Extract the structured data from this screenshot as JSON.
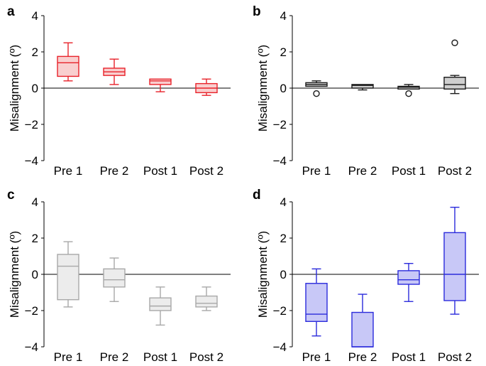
{
  "chart_data": [
    {
      "type": "box",
      "panel": "a",
      "ylabel": "Misalignment (º)",
      "ylim": [
        -4,
        4
      ],
      "yticks": [
        4,
        2,
        0,
        -2,
        -4
      ],
      "ytick_labels": [
        "4",
        "2",
        "0",
        "−2",
        "−4"
      ],
      "categories": [
        "Pre 1",
        "Pre 2",
        "Post 1",
        "Post 2"
      ],
      "color": "#e8222a",
      "fill": "#f9cfcf",
      "boxes": [
        {
          "category": "Pre 1",
          "whisker_low": 0.4,
          "q1": 0.65,
          "median": 1.4,
          "q3": 1.75,
          "whisker_high": 2.5,
          "outliers": []
        },
        {
          "category": "Pre 2",
          "whisker_low": 0.2,
          "q1": 0.7,
          "median": 0.9,
          "q3": 1.1,
          "whisker_high": 1.6,
          "outliers": []
        },
        {
          "category": "Post 1",
          "whisker_low": -0.2,
          "q1": 0.2,
          "median": 0.4,
          "q3": 0.5,
          "whisker_high": 0.5,
          "outliers": []
        },
        {
          "category": "Post 2",
          "whisker_low": -0.4,
          "q1": -0.25,
          "median": 0.0,
          "q3": 0.25,
          "whisker_high": 0.5,
          "outliers": []
        }
      ]
    },
    {
      "type": "box",
      "panel": "b",
      "ylabel": "Misalignment (º)",
      "ylim": [
        -4,
        4
      ],
      "yticks": [
        4,
        2,
        0,
        -2,
        -4
      ],
      "ytick_labels": [
        "4",
        "2",
        "0",
        "−2",
        "−4"
      ],
      "categories": [
        "Pre 1",
        "Pre 2",
        "Post 1",
        "Post 2"
      ],
      "color": "#1a1a1a",
      "fill": "#cfcfcf",
      "boxes": [
        {
          "category": "Pre 1",
          "whisker_low": 0.1,
          "q1": 0.1,
          "median": 0.2,
          "q3": 0.3,
          "whisker_high": 0.4,
          "outliers": [
            -0.3
          ]
        },
        {
          "category": "Pre 2",
          "whisker_low": -0.1,
          "q1": 0.0,
          "median": 0.15,
          "q3": 0.2,
          "whisker_high": 0.2,
          "outliers": []
        },
        {
          "category": "Post 1",
          "whisker_low": -0.05,
          "q1": -0.05,
          "median": 0.05,
          "q3": 0.1,
          "whisker_high": 0.2,
          "outliers": [
            -0.3
          ]
        },
        {
          "category": "Post 2",
          "whisker_low": -0.3,
          "q1": -0.05,
          "median": 0.2,
          "q3": 0.6,
          "whisker_high": 0.7,
          "outliers": [
            2.5
          ]
        }
      ]
    },
    {
      "type": "box",
      "panel": "c",
      "ylabel": "Misalignment (º)",
      "ylim": [
        -4,
        4
      ],
      "yticks": [
        4,
        2,
        0,
        -2,
        -4
      ],
      "ytick_labels": [
        "4",
        "2",
        "0",
        "−2",
        "−4"
      ],
      "categories": [
        "Pre 1",
        "Pre 2",
        "Post 1",
        "Post 2"
      ],
      "color": "#a8a8a8",
      "fill": "#ececec",
      "boxes": [
        {
          "category": "Pre 1",
          "whisker_low": -1.8,
          "q1": -1.4,
          "median": 0.45,
          "q3": 1.1,
          "whisker_high": 1.8,
          "outliers": []
        },
        {
          "category": "Pre 2",
          "whisker_low": -1.5,
          "q1": -0.7,
          "median": -0.3,
          "q3": 0.3,
          "whisker_high": 0.9,
          "outliers": []
        },
        {
          "category": "Post 1",
          "whisker_low": -2.8,
          "q1": -2.0,
          "median": -1.75,
          "q3": -1.3,
          "whisker_high": -0.7,
          "outliers": []
        },
        {
          "category": "Post 2",
          "whisker_low": -2.0,
          "q1": -1.8,
          "median": -1.6,
          "q3": -1.2,
          "whisker_high": -0.7,
          "outliers": []
        }
      ]
    },
    {
      "type": "box",
      "panel": "d",
      "ylabel": "Misalignment (º)",
      "ylim": [
        -4,
        4
      ],
      "yticks": [
        4,
        2,
        0,
        -2,
        -4
      ],
      "ytick_labels": [
        "4",
        "2",
        "0",
        "−2",
        "−4"
      ],
      "categories": [
        "Pre 1",
        "Pre 2",
        "Post 1",
        "Post 2"
      ],
      "color": "#2b2bdc",
      "fill": "#c8c8f7",
      "boxes": [
        {
          "category": "Pre 1",
          "whisker_low": -3.4,
          "q1": -2.6,
          "median": -2.2,
          "q3": -0.5,
          "whisker_high": 0.3,
          "outliers": []
        },
        {
          "category": "Pre 2",
          "whisker_low": -4.0,
          "q1": -4.0,
          "median": -4.0,
          "q3": -2.1,
          "whisker_high": -1.1,
          "outliers": []
        },
        {
          "category": "Post 1",
          "whisker_low": -1.5,
          "q1": -0.55,
          "median": -0.3,
          "q3": 0.2,
          "whisker_high": 0.6,
          "outliers": []
        },
        {
          "category": "Post 2",
          "whisker_low": -2.2,
          "q1": -1.45,
          "median": 0.0,
          "q3": 2.3,
          "whisker_high": 3.7,
          "outliers": []
        }
      ]
    }
  ]
}
